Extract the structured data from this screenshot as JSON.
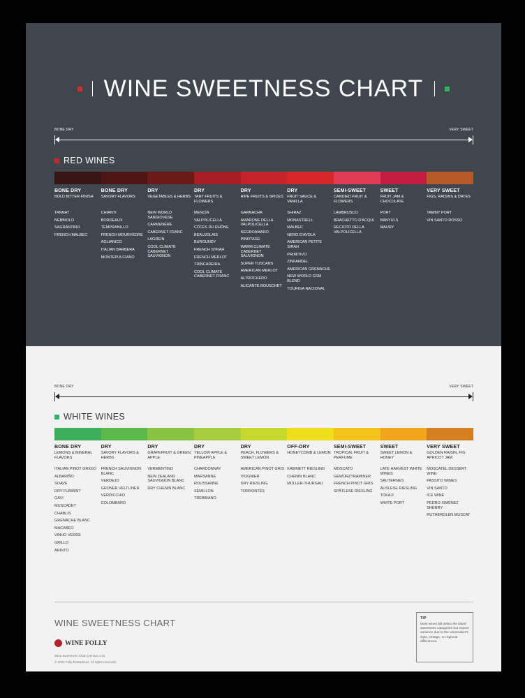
{
  "title": "WINE SWEETNESS CHART",
  "colors": {
    "background": "#3f464e",
    "light_background": "#f2f2f2",
    "title_left_square": "#d52b2b",
    "title_right_square": "#2fb45c",
    "red_marker": "#c62828",
    "white_marker": "#33b36a"
  },
  "red": {
    "scale_left": "BONE DRY",
    "scale_right": "VERY SWEET",
    "header": "RED WINES",
    "band_colors": [
      "#351414",
      "#4c1616",
      "#6b1818",
      "#a81d24",
      "#c4252a",
      "#d7262c",
      "#e23a56",
      "#c11e42",
      "#b65a2a"
    ],
    "columns": [
      {
        "heading": "BONE DRY",
        "sub": "BOLD BITTER FINISH",
        "wines": [
          "TANNAT",
          "NEBBIOLO",
          "SAGRANTINO",
          "FRENCH MALBEC"
        ]
      },
      {
        "heading": "BONE DRY",
        "sub": "SAVORY FLAVORS",
        "wines": [
          "CHIANTI",
          "BORDEAUX",
          "TEMPRANILLO",
          "FRENCH MOURVÈDRE",
          "AGLIANICO",
          "ITALIAN BARBERA",
          "MONTEPULCIANO"
        ]
      },
      {
        "heading": "DRY",
        "sub": "VEGETABLES & HERBS",
        "wines": [
          "NEW WORLD SANGIOVESE",
          "CARMENÈRE",
          "CABERNET FRANC",
          "LAGREIN",
          "COOL CLIMATE CABERNET SAUVIGNON"
        ]
      },
      {
        "heading": "DRY",
        "sub": "TART FRUITS & FLOWERS",
        "wines": [
          "MENCÍA",
          "VALPOLICELLA",
          "CÔTES DU RHÔNE",
          "BEAUJOLAIS",
          "BURGUNDY",
          "FRENCH SYRAH",
          "FRENCH MERLOT",
          "TRINCADEIRA",
          "COOL CLIMATE CABERNET FRANC"
        ]
      },
      {
        "heading": "DRY",
        "sub": "RIPE FRUITS & SPICES",
        "wines": [
          "GARNACHA",
          "AMARONE DELLA VALPOLICELLA",
          "NEGROAMARO",
          "PINOTAGE",
          "WARM CLIMATE CABERNET SAUVIGNON",
          "SUPER TUSCANS",
          "AMERICAN MERLOT",
          "ALTROCHERO",
          "ALICANTE BOUSCHET"
        ]
      },
      {
        "heading": "DRY",
        "sub": "FRUIT SAUCE & VANILLA",
        "wines": [
          "SHIRAZ",
          "MONASTRELL",
          "MALBEC",
          "NERO D'AVOLA",
          "AMERICAN PETITE SIRAH",
          "PRIMITIVO",
          "ZINFANDEL",
          "AMERICAN GRENACHE",
          "NEW WORLD GSM BLEND",
          "TOURIGA NACIONAL"
        ]
      },
      {
        "heading": "SEMI-SWEET",
        "sub": "CANDIED FRUIT & FLOWERS",
        "wines": [
          "LAMBRUSCO",
          "BRACHETTO D'ACQUI",
          "RECIOTO DELLA VALPOLICELLA"
        ]
      },
      {
        "heading": "SWEET",
        "sub": "FRUIT JAM & CHOCOLATE",
        "wines": [
          "PORT",
          "BANYULS",
          "MAURY"
        ]
      },
      {
        "heading": "VERY SWEET",
        "sub": "FIGS, RAISINS & DATES",
        "wines": [
          "TAWNY PORT",
          "VIN SANTO ROSSO"
        ]
      }
    ]
  },
  "white": {
    "scale_left": "BONE DRY",
    "scale_right": "VERY SWEET",
    "header": "WHITE WINES",
    "band_colors": [
      "#3daf5a",
      "#5cb84a",
      "#88c441",
      "#a7ce3e",
      "#c8d92e",
      "#f1de1a",
      "#f3c51c",
      "#f0a51c",
      "#d57f23"
    ],
    "columns": [
      {
        "heading": "BONE DRY",
        "sub": "LEMONS & MINERAL FLAVORS",
        "wines": [
          "ITALIAN PINOT GRIGIO",
          "ALBARIÑO",
          "SOAVE",
          "DRY FURMINT",
          "GAVI",
          "MUSCADET",
          "CHABLIS",
          "GRENACHE BLANC",
          "MACABEO",
          "VINHO VERDE",
          "GRILLO",
          "ARINTO"
        ]
      },
      {
        "heading": "DRY",
        "sub": "SAVORY FLAVORS & HERBS",
        "wines": [
          "FRENCH SAUVIGNON BLANC",
          "VERDEJO",
          "GRÜNER VELTLINER",
          "VERDICCHIO",
          "COLOMBARD"
        ]
      },
      {
        "heading": "DRY",
        "sub": "GRAPEFRUIT & GREEN APPLE",
        "wines": [
          "VERMENTINO",
          "NEW ZEALAND SAUVIGNON BLANC",
          "DRY CHENIN BLANC"
        ]
      },
      {
        "heading": "DRY",
        "sub": "YELLOW APPLE & PINEAPPLE",
        "wines": [
          "CHARDONNAY",
          "MARSANNE",
          "ROUSSANNE",
          "SÉMILLON",
          "TREBBIANO"
        ]
      },
      {
        "heading": "DRY",
        "sub": "PEACH, FLOWERS & SWEET LEMON",
        "wines": [
          "AMERICAN PINOT GRIS",
          "VIOGNIER",
          "DRY RIESLING",
          "TORRONTÉS"
        ]
      },
      {
        "heading": "OFF-DRY",
        "sub": "HONEYCOMB & LEMON",
        "wines": [
          "KABINETT RIESLING",
          "CHENIN BLANC",
          "MÜLLER-THURGAU"
        ]
      },
      {
        "heading": "SEMI-SWEET",
        "sub": "TROPICAL FRUIT & PERFUME",
        "wines": [
          "MOSCATO",
          "GEWÜRZTRAMINER",
          "FRENCH PINOT GRIS",
          "SPÄTLESE RIESLING"
        ]
      },
      {
        "heading": "SWEET",
        "sub": "SWEET LEMON & HONEY",
        "wines": [
          "LATE HARVEST WHITE WINES",
          "SAUTERNES",
          "AUSLESE RIESLING",
          "TOKAJI",
          "WHITE PORT"
        ]
      },
      {
        "heading": "VERY SWEET",
        "sub": "GOLDEN RAISIN, FIG APRICOT JAM",
        "wines": [
          "MOSCATEL DESSERT WINE",
          "PASSITO WINES",
          "VIN SANTO",
          "ICE WINE",
          "PEDRO XIMÉNEZ SHERRY",
          "RUTHERGLEN MUSCAT"
        ]
      }
    ]
  },
  "footer": {
    "title": "WINE SWEETNESS CHART",
    "brand": "WINE FOLLY",
    "fine_print": [
      "Wine Sweetness Chart (version 3.0)",
      "© 2021 Folly Enterprises. All rights reserved."
    ],
    "tip_title": "TIP",
    "tip_body": "Most wines fall within the listed sweetness categories but expect variance due to the winemaker's style, vintage, or regional differences."
  }
}
